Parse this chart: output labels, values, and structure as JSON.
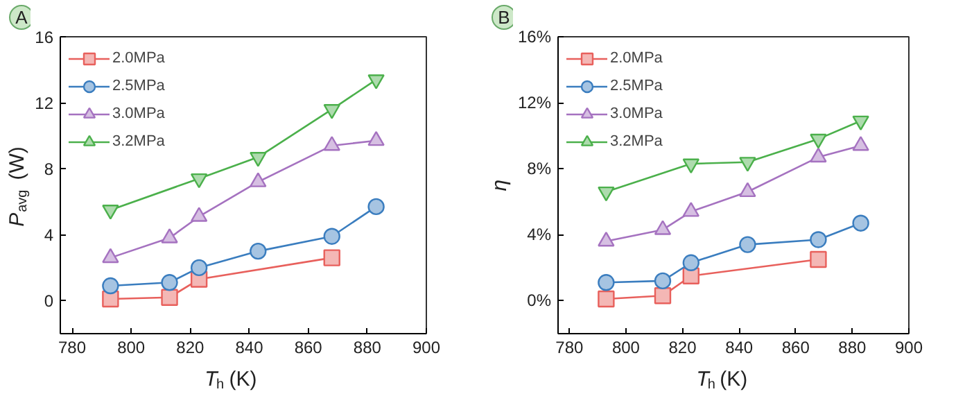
{
  "chart_data": [
    {
      "type": "line",
      "title": "A",
      "xlabel": "T$_{h}$ (K)",
      "ylabel": "P$_{avg}$ (W)",
      "xlim": [
        776,
        900
      ],
      "xticks": [
        780,
        800,
        820,
        840,
        860,
        880,
        900
      ],
      "ylim": [
        -2,
        16
      ],
      "yticks": [
        0,
        4,
        8,
        12,
        16
      ],
      "grid": false,
      "legend": "top left",
      "series": [
        {
          "name": "2.0MPa",
          "color": "#e8605c",
          "marker": "square",
          "x": [
            793,
            813,
            823,
            868
          ],
          "values": [
            0.1,
            0.2,
            1.3,
            2.6
          ]
        },
        {
          "name": "2.5MPa",
          "color": "#3a7dbf",
          "marker": "circle",
          "x": [
            793,
            813,
            823,
            843,
            868,
            883
          ],
          "values": [
            0.9,
            1.1,
            2.0,
            3.0,
            3.9,
            5.7
          ]
        },
        {
          "name": "3.0MPa",
          "color": "#a572c0",
          "marker": "triangle",
          "x": [
            793,
            813,
            823,
            843,
            868,
            883
          ],
          "values": [
            2.6,
            3.8,
            5.1,
            7.2,
            9.4,
            9.7
          ]
        },
        {
          "name": "3.2MPa",
          "color": "#4bb04b",
          "marker": "triangle",
          "x": [
            793,
            823,
            843,
            868,
            883
          ],
          "values": [
            5.5,
            7.4,
            8.7,
            11.6,
            13.4
          ]
        }
      ]
    },
    {
      "type": "line",
      "title": "B",
      "xlabel": "T$_{h}$ (K)",
      "ylabel": "η",
      "xlim": [
        776,
        900
      ],
      "xticks": [
        780,
        800,
        820,
        840,
        860,
        880,
        900
      ],
      "ylim": [
        -2,
        16
      ],
      "yticks": [
        {
          "value": 0,
          "label": "0%"
        },
        {
          "value": 4,
          "label": "4%"
        },
        {
          "value": 8,
          "label": "8%"
        },
        {
          "value": 12,
          "label": "12%"
        },
        {
          "value": 16,
          "label": "16%"
        }
      ],
      "grid": false,
      "legend": "top left",
      "series": [
        {
          "name": "2.0MPa",
          "color": "#e8605c",
          "marker": "square",
          "x": [
            793,
            813,
            823,
            868
          ],
          "values": [
            0.1,
            0.3,
            1.5,
            2.5
          ]
        },
        {
          "name": "2.5MPa",
          "color": "#3a7dbf",
          "marker": "circle",
          "x": [
            793,
            813,
            823,
            843,
            868,
            883
          ],
          "values": [
            1.1,
            1.2,
            2.3,
            3.4,
            3.7,
            4.7
          ]
        },
        {
          "name": "3.0MPa",
          "color": "#a572c0",
          "marker": "triangle",
          "x": [
            793,
            813,
            823,
            843,
            868,
            883
          ],
          "values": [
            3.6,
            4.3,
            5.4,
            6.6,
            8.7,
            9.4
          ]
        },
        {
          "name": "3.2MPa",
          "color": "#4bb04b",
          "marker": "triangle",
          "x": [
            793,
            823,
            843,
            868,
            883
          ],
          "values": [
            6.6,
            8.3,
            8.4,
            9.8,
            10.9
          ]
        }
      ]
    }
  ]
}
